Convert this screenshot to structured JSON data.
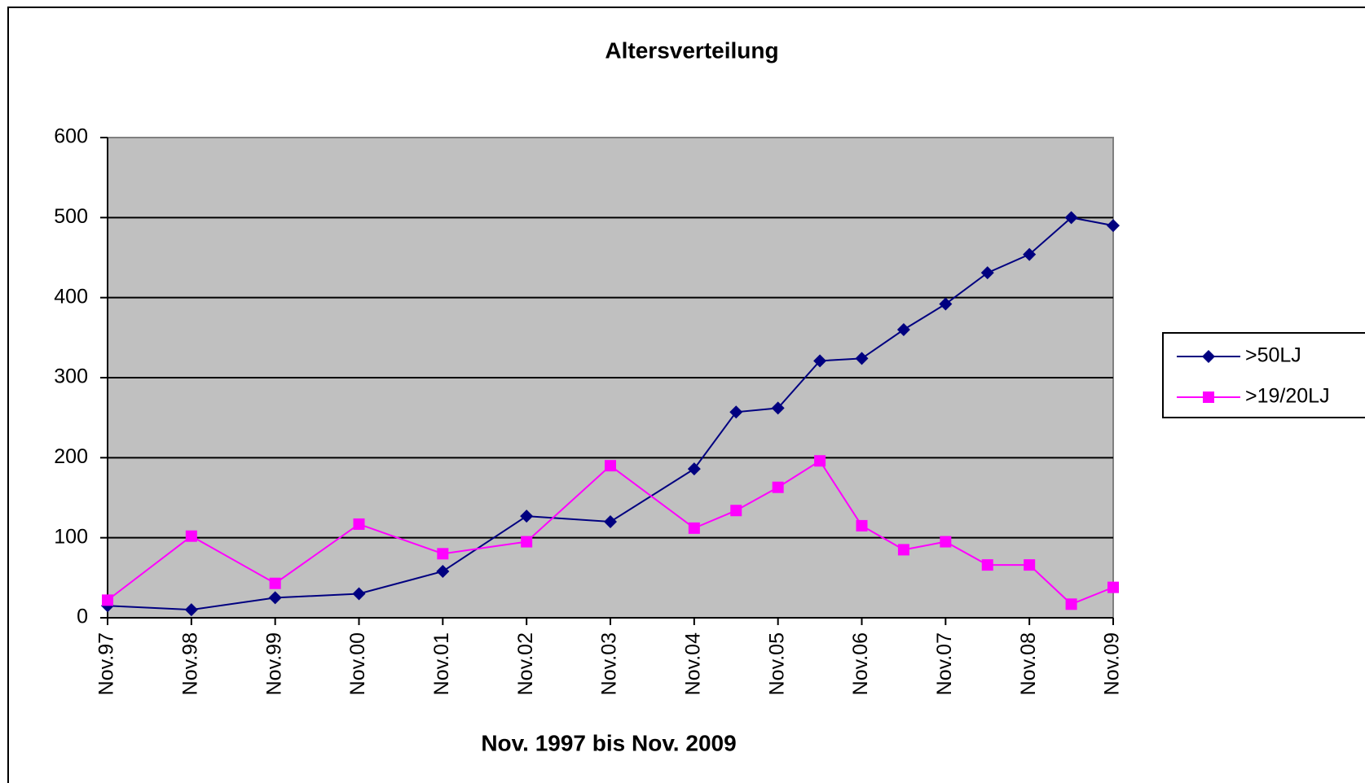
{
  "chart_data": {
    "type": "line",
    "title": "Altersverteilung",
    "x_label": "Nov. 1997 bis Nov. 2009",
    "x": [
      "1997-11",
      "1998-11",
      "1999-11",
      "2000-11",
      "2001-11",
      "2002-11",
      "2003-11",
      "2004-11",
      "2005-05",
      "2005-11",
      "2006-05",
      "2006-11",
      "2007-05",
      "2007-11",
      "2008-05",
      "2008-11",
      "2009-05",
      "2009-11"
    ],
    "xlim": [
      "1997-11",
      "2009-11"
    ],
    "xticks": [
      {
        "value": "1997-11",
        "label": "Nov.97"
      },
      {
        "value": "1998-11",
        "label": "Nov.98"
      },
      {
        "value": "1999-11",
        "label": "Nov.99"
      },
      {
        "value": "2000-11",
        "label": "Nov.00"
      },
      {
        "value": "2001-11",
        "label": "Nov.01"
      },
      {
        "value": "2002-11",
        "label": "Nov.02"
      },
      {
        "value": "2003-11",
        "label": "Nov.03"
      },
      {
        "value": "2004-11",
        "label": "Nov.04"
      },
      {
        "value": "2005-11",
        "label": "Nov.05"
      },
      {
        "value": "2006-11",
        "label": "Nov.06"
      },
      {
        "value": "2007-11",
        "label": "Nov.07"
      },
      {
        "value": "2008-11",
        "label": "Nov.08"
      },
      {
        "value": "2009-11",
        "label": "Nov.09"
      }
    ],
    "ylim": [
      0,
      600
    ],
    "yticks": [
      0,
      100,
      200,
      300,
      400,
      500,
      600
    ],
    "grid": true,
    "legend": "right",
    "series": [
      {
        "name": ">50LJ",
        "color": "#000080",
        "marker": "diamond",
        "values": [
          15,
          10,
          25,
          30,
          58,
          127,
          120,
          186,
          257,
          262,
          321,
          324,
          360,
          392,
          431,
          454,
          500,
          490
        ]
      },
      {
        "name": ">19/20LJ",
        "color": "#ff00ff",
        "marker": "square",
        "values": [
          22,
          102,
          43,
          117,
          80,
          95,
          190,
          112,
          134,
          163,
          196,
          115,
          85,
          95,
          66,
          66,
          17,
          38
        ]
      }
    ]
  }
}
